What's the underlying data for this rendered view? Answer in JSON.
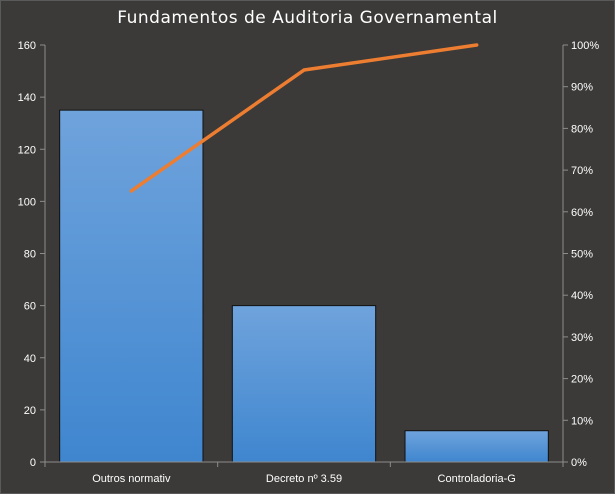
{
  "chart_data": {
    "type": "bar",
    "title": "Fundamentos de Auditoria Governamental",
    "categories": [
      "Outros normativ",
      "Decreto nº 3.59",
      "Controladoria-G"
    ],
    "series": [
      {
        "type": "bar",
        "values": [
          135,
          60,
          12
        ]
      },
      {
        "type": "line",
        "axis": "secondary",
        "values": [
          0.65,
          0.94,
          1.0
        ]
      }
    ],
    "ylim": [
      0,
      160
    ],
    "y_ticks": [
      "0",
      "20",
      "40",
      "60",
      "80",
      "100",
      "120",
      "140",
      "160"
    ],
    "y2lim": [
      0,
      1
    ],
    "y2_ticks": [
      "0%",
      "10%",
      "20%",
      "30%",
      "40%",
      "50%",
      "60%",
      "70%",
      "80%",
      "90%",
      "100%"
    ],
    "grid": false,
    "legend": "none",
    "colors": {
      "background": "#3b3a38",
      "bar_top": "#6fa3dc",
      "bar_bottom": "#3f86cf",
      "bar_border": "#111111",
      "line": "#ed7d31",
      "text": "#ffffff",
      "axis": "#8c8c8c"
    }
  }
}
